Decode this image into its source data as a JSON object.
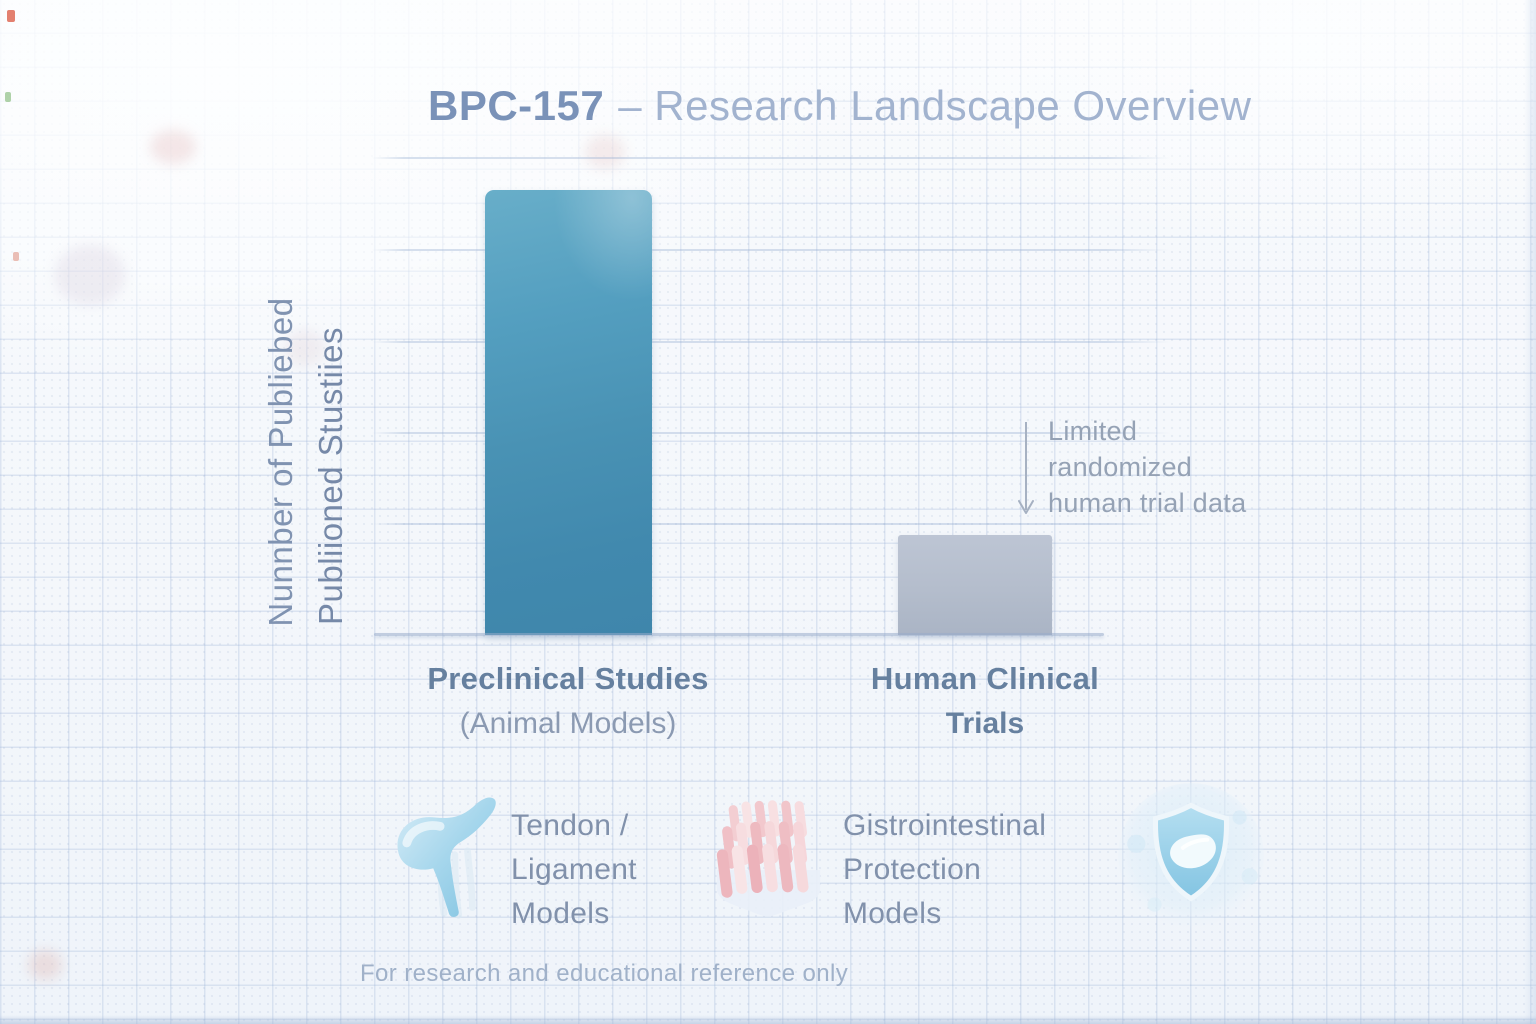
{
  "title": {
    "product": "BPC-157",
    "rest": "– Research Landscape Overview"
  },
  "chart_data": {
    "type": "bar",
    "title": "BPC-157 – Research Landscape Overview",
    "ylabel_lines": [
      "Nunnber of Publiebed",
      "Publiioned Stustiies"
    ],
    "categories": [
      "Preclinical Studies (Animal Models)",
      "Human Clinical Trials"
    ],
    "values": [
      93,
      21
    ],
    "ylim": [
      0,
      100
    ],
    "value_labels_shown": false,
    "tick_labels_shown": false,
    "grid": "5 horizontal gridlines, values estimated from gridlines",
    "legend_position": "none",
    "bar_colors": [
      "#4a92b4",
      "#b4bdcc"
    ],
    "annotation": {
      "text": "Limited randomized human trial data",
      "target": "Human Clinical Trials"
    }
  },
  "xaxis": {
    "categories": [
      {
        "line1": "Preclinical Studies",
        "line2": "(Animal Models)"
      },
      {
        "line1": "Human Clinical",
        "line2": "Trials"
      }
    ]
  },
  "annotation": {
    "lines": [
      "Limited",
      "randomized",
      "human trial data"
    ]
  },
  "legend": {
    "items": [
      {
        "icon": "tendon-ligament-icon",
        "lines": [
          "Tendon /",
          "Ligament",
          "Models"
        ]
      },
      {
        "icon": "intestinal-villi-icon",
        "lines": [
          "Gistrointestinal",
          "Protection",
          "Models"
        ]
      },
      {
        "icon": "shield-protection-icon",
        "lines": []
      }
    ]
  },
  "footer": {
    "disclaimer": "For research and educational reference only"
  },
  "colors": {
    "accent_teal": "#4a92b4",
    "bar_gray": "#b4bdcc",
    "title_strong": "#7a92b8",
    "title_light": "#a2b3cf",
    "axis_text_dark": "#66809f",
    "axis_text_muted": "#8b9ab2",
    "annotation_text": "#95a2b5",
    "footer_text": "#a0b1c9"
  }
}
